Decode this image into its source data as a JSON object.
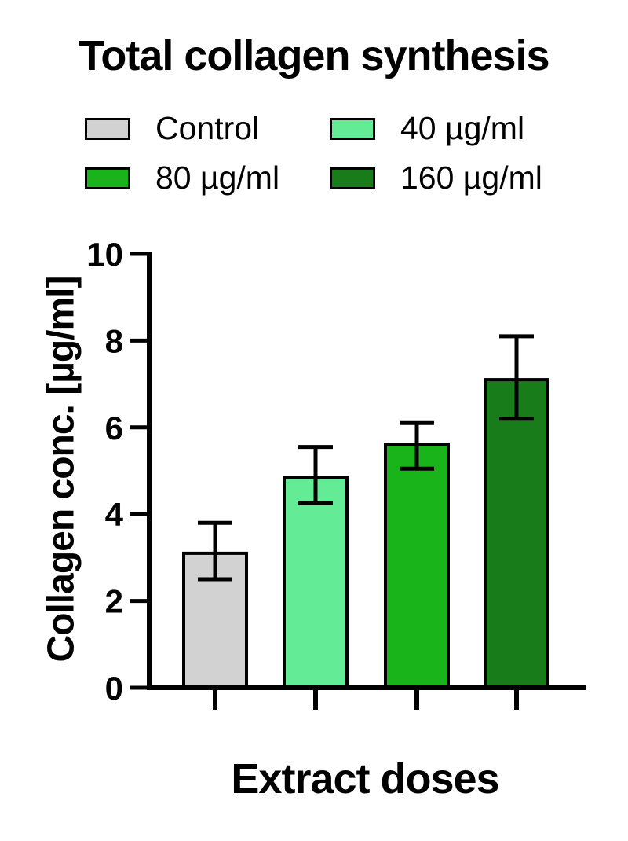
{
  "legend": {
    "items": [
      {
        "label": "Control",
        "color": "#d2d2d2"
      },
      {
        "label": "40 µg/ml",
        "color": "#64eb96"
      },
      {
        "label": "80 µg/ml",
        "color": "#19b419"
      },
      {
        "label": "160 µg/ml",
        "color": "#187c1a"
      }
    ],
    "position": "top"
  },
  "chart_data": {
    "type": "bar",
    "title": "Total collagen synthesis",
    "categories": [
      "Control",
      "40 µg/ml",
      "80 µg/ml",
      "160 µg/ml"
    ],
    "values": [
      3.1,
      4.85,
      5.6,
      7.1
    ],
    "error_low": [
      2.5,
      4.25,
      5.05,
      6.2
    ],
    "error_high": [
      3.8,
      5.55,
      6.1,
      8.1
    ],
    "bar_colors": [
      "#d2d2d2",
      "#64eb96",
      "#19b419",
      "#187c1a"
    ],
    "xlabel": "Extract doses",
    "ylabel": "Collagen conc. [µg/ml]",
    "ylim": [
      0,
      10
    ],
    "yticks": [
      0,
      2,
      4,
      6,
      8,
      10
    ],
    "grid": false,
    "legend_position": "top"
  }
}
